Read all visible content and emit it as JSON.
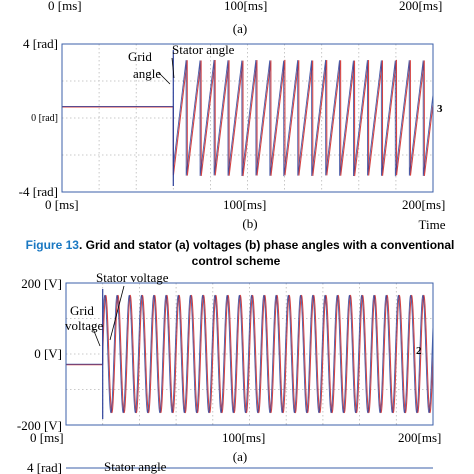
{
  "top_fragment": {
    "ticks": [
      "0 [ms]",
      "100[ms]",
      "200[ms]"
    ],
    "panel_label": "(a)"
  },
  "figure13": {
    "number": "Figure 13",
    "text_line1": ". Grid and stator (a) voltages (b) phase angles with a conventional",
    "text_line2": "control scheme"
  },
  "colors": {
    "stator": "#d23a3a",
    "grid": "#2b3f99",
    "frame": "#3b5fa8",
    "caption_accent": "#1a78c2"
  },
  "chart_data": [
    {
      "type": "line",
      "panel": "(b)",
      "title": "",
      "xlabel": "Time",
      "ylabel": "",
      "x_ticks": [
        "0 [ms]",
        "100[ms]",
        "200[ms]"
      ],
      "y_ticks": [
        "4 [rad]",
        "0 [rad]",
        "-4 [rad]"
      ],
      "xlim": [
        0,
        200
      ],
      "ylim": [
        -4,
        4
      ],
      "grid": true,
      "annotations": {
        "grid": "Grid angle",
        "stator": "Stator angle",
        "end_marker": "3"
      },
      "steady_value": 0.6,
      "switch_ms": 60,
      "frequency_hz": 133,
      "series": [
        {
          "name": "Stator angle",
          "color": "#d23a3a",
          "waveform": "sawtooth",
          "amplitude": 3.14
        },
        {
          "name": "Grid angle",
          "color": "#2b3f99",
          "waveform": "sawtooth",
          "amplitude": 3.14
        }
      ]
    },
    {
      "type": "line",
      "panel": "(a)",
      "title": "",
      "xlabel": "",
      "ylabel": "",
      "x_ticks": [
        "0 [ms]",
        "100[ms]",
        "200[ms]"
      ],
      "y_ticks": [
        "200 [V]",
        "0 [V]",
        "-200 [V]"
      ],
      "xlim": [
        0,
        200
      ],
      "ylim": [
        -200,
        200
      ],
      "grid": true,
      "annotations": {
        "grid": "Grid voltage",
        "stator": "Stator voltage",
        "end_marker": "2"
      },
      "steady_value": -30,
      "switch_ms": 20,
      "frequency_hz": 150,
      "series": [
        {
          "name": "Stator voltage",
          "color": "#d23a3a",
          "waveform": "sine",
          "amplitude": 165
        },
        {
          "name": "Grid voltage",
          "color": "#2b3f99",
          "waveform": "sine",
          "amplitude": 165
        }
      ]
    }
  ],
  "bottom_fragment": {
    "ytick": "4 [rad]",
    "annotation": "Stator angle"
  }
}
